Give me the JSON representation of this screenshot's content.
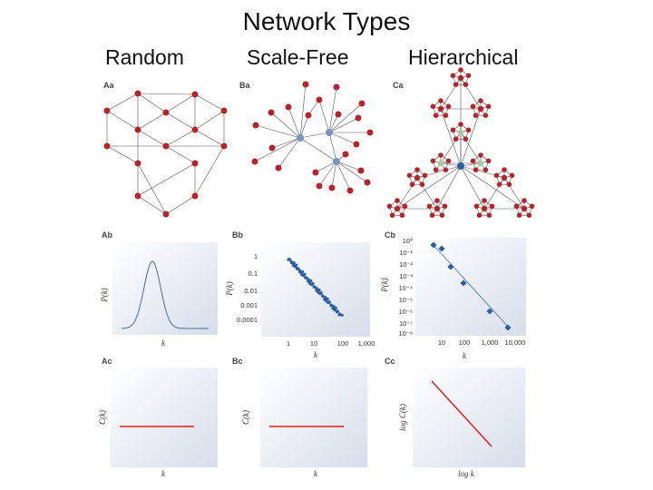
{
  "title": "Network Types",
  "columns": [
    "Random",
    "Scale-Free",
    "Hierarchical"
  ],
  "panels": {
    "Aa": "Aa",
    "Ab": "Ab",
    "Ac": "Ac",
    "Ba": "Ba",
    "Bb": "Bb",
    "Bc": "Bc",
    "Ca": "Ca",
    "Cb": "Cb",
    "Cc": "Cc"
  },
  "axes": {
    "Ab": {
      "x": "k",
      "y": "P(k)"
    },
    "Ac": {
      "x": "k",
      "y": "C(k)"
    },
    "Bb": {
      "x": "k",
      "y": "P(k)"
    },
    "Bc": {
      "x": "k",
      "y": "C(k)"
    },
    "Cb": {
      "x": "k",
      "y": "P(k)"
    },
    "Cc": {
      "x": "log k",
      "y": "log C(k)"
    }
  },
  "ticks": {
    "Bb_y": [
      "1",
      "0.1",
      "0.01",
      "0.001",
      "0.0001"
    ],
    "Bb_x": [
      "1",
      "10",
      "100",
      "1,000"
    ],
    "Cb_y": [
      "10⁰",
      "10⁻¹",
      "10⁻²",
      "10⁻³",
      "10⁻⁴",
      "10⁻⁵",
      "10⁻⁶",
      "10⁻⁷",
      "10⁻⁸"
    ],
    "Cb_x": [
      "10",
      "100",
      "1,000",
      "10,000"
    ]
  },
  "colors": {
    "node_red": "#b5242a",
    "node_blue": "#7b93bf",
    "node_green": "#a8c79a",
    "hub_blue": "#2a5f9e",
    "curve_blue": "#3a6fb0",
    "line_red": "#e02020",
    "panel_bg": "#e4e9f1",
    "edge": "#555555"
  }
}
